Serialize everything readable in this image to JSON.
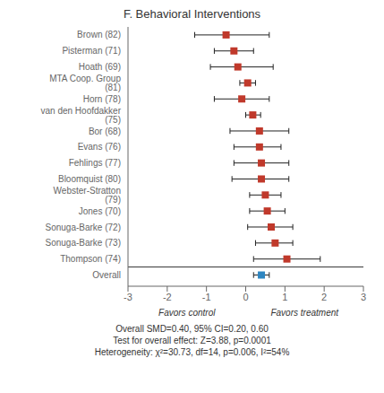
{
  "chart_data": {
    "type": "forest",
    "title": "F. Behavioral Interventions",
    "categories": [
      "Brown (82)",
      "Pisterman (71)",
      "Hoath (69)",
      "MTA Coop. Group (81)",
      "Horn (78)",
      "van den Hoofdakker (75)",
      "Bor (68)",
      "Evans (76)",
      "Fehlings (77)",
      "Bloomquist (80)",
      "Webster-Stratton (79)",
      "Jones (70)",
      "Sonuga-Barke (72)",
      "Sonuga-Barke (73)",
      "Thompson (74)",
      "Overall"
    ],
    "values": [
      -0.5,
      -0.3,
      -0.2,
      0.05,
      -0.1,
      0.18,
      0.35,
      0.35,
      0.4,
      0.4,
      0.5,
      0.55,
      0.65,
      0.75,
      1.05,
      0.4
    ],
    "lo": [
      -1.3,
      -0.8,
      -0.9,
      -0.15,
      -0.8,
      0.0,
      -0.4,
      -0.3,
      -0.3,
      -0.35,
      0.1,
      0.1,
      0.05,
      0.25,
      0.2,
      0.2
    ],
    "hi": [
      0.6,
      0.2,
      0.7,
      0.25,
      0.6,
      0.38,
      1.1,
      0.9,
      1.1,
      1.1,
      0.9,
      1.0,
      1.2,
      1.2,
      1.9,
      0.6
    ],
    "colors": [
      "#c0392b",
      "#c0392b",
      "#c0392b",
      "#c0392b",
      "#c0392b",
      "#c0392b",
      "#c0392b",
      "#c0392b",
      "#c0392b",
      "#c0392b",
      "#c0392b",
      "#c0392b",
      "#c0392b",
      "#c0392b",
      "#c0392b",
      "#2e86c1"
    ],
    "xlim": [
      -3,
      3
    ],
    "xticks": [
      -3,
      -2,
      -1,
      0,
      1,
      2,
      3
    ],
    "grid": false,
    "annotations": [
      "Favors control",
      "Favors treatment"
    ],
    "footer": [
      "Overall SMD=0.40, 95% CI=0.20, 0.60",
      "Test for overall effect: Z=3.88, p=0.0001",
      "Heterogeneity: χ²=30.73, df=14, p=0.006, I²=54%"
    ]
  }
}
